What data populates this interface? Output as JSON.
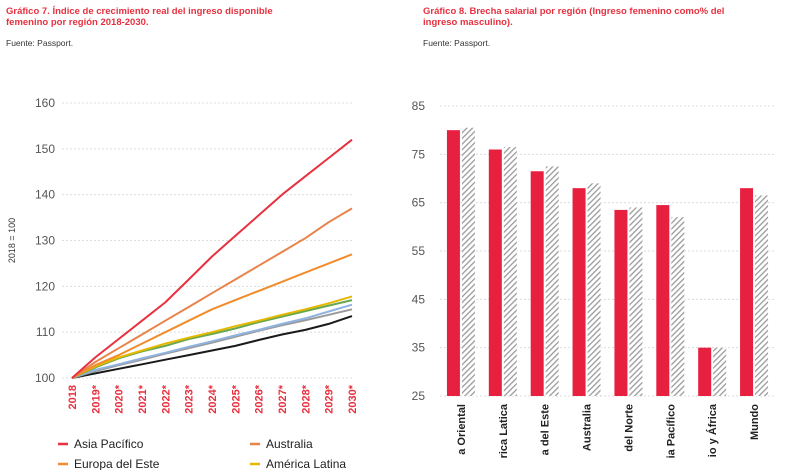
{
  "colors": {
    "asia_pacifico": "#e8303f",
    "australia": "#e8834a",
    "europa_este": "#f08c2a",
    "america_latina": "#e6b800",
    "green": "#6aa84f",
    "lightblue": "#8fb3e0",
    "grey": "#9a9a9a",
    "black": "#1a1a1a",
    "bar_red": "#e8203f",
    "bar_hatch": "#9a9a9a",
    "axis_text": "#555555",
    "grid": "#dcdcdc",
    "accent": "#e8303f"
  },
  "left_chart": {
    "title_line1": "Gráfico 7. Índice de crecimiento real del ingreso disponible",
    "title_line2": "femenino por región 2018-2030.",
    "source": "Fuente: Passport."
  },
  "right_chart": {
    "title_line1": "Gráfico 8. Brecha salarial por región (Ingreso femenino como% del",
    "title_line2": "ingreso masculino).",
    "source": "Fuente: Passport."
  },
  "chart_data": [
    {
      "type": "line",
      "title": "Gráfico 7. Índice de crecimiento real del ingreso disponible femenino por región 2018-2030.",
      "ylabel": "2018 = 100",
      "ylim": [
        100,
        160
      ],
      "yticks": [
        100,
        110,
        120,
        130,
        140,
        150,
        160
      ],
      "x": [
        "2018",
        "2019*",
        "2020*",
        "2021*",
        "2022*",
        "2023*",
        "2024*",
        "2025*",
        "2026*",
        "2027*",
        "2028*",
        "2029*",
        "2030*"
      ],
      "series": [
        {
          "name": "Asia Pacífico",
          "color_key": "asia_pacifico",
          "values": [
            100,
            104.5,
            108.5,
            112.5,
            116.5,
            121.5,
            126.5,
            131,
            135.5,
            140,
            144,
            148,
            152
          ]
        },
        {
          "name": "Australia",
          "color_key": "australia",
          "values": [
            100,
            103.5,
            106.5,
            109.5,
            112.5,
            115.5,
            118.5,
            121.5,
            124.5,
            127.5,
            130.5,
            134,
            137
          ]
        },
        {
          "name": "Europa del Este",
          "color_key": "europa_este",
          "values": [
            100,
            102.8,
            105,
            107.5,
            110,
            112.5,
            115,
            117,
            119,
            121,
            123,
            125,
            127
          ]
        },
        {
          "name": "América Latina",
          "color_key": "america_latina",
          "values": [
            100,
            102.5,
            104.5,
            106,
            107.5,
            108.8,
            110,
            111.3,
            112.5,
            113.8,
            115,
            116.3,
            117.8
          ]
        },
        {
          "name": "",
          "color_key": "green",
          "values": [
            100,
            102.3,
            104.3,
            105.8,
            107,
            108.5,
            109.6,
            110.8,
            112.2,
            113.4,
            114.6,
            115.8,
            117
          ]
        },
        {
          "name": "",
          "color_key": "lightblue",
          "values": [
            100,
            101.8,
            103,
            104.3,
            105.5,
            106.8,
            108,
            109.3,
            110.5,
            111.8,
            113,
            114.5,
            116
          ]
        },
        {
          "name": "",
          "color_key": "grey",
          "values": [
            100,
            101.5,
            102.8,
            104,
            105.3,
            106.5,
            107.7,
            109,
            110.3,
            111.5,
            112.6,
            113.8,
            115
          ]
        },
        {
          "name": "",
          "color_key": "black",
          "values": [
            100,
            101,
            102,
            103,
            104,
            105,
            106,
            107,
            108.3,
            109.5,
            110.5,
            111.8,
            113.5
          ]
        }
      ],
      "legend_visible": [
        "Asia Pacífico",
        "Australia",
        "Europa del Este",
        "América Latina"
      ]
    },
    {
      "type": "bar",
      "title": "Gráfico 8. Brecha salarial por región (Ingreso femenino como% del ingreso masculino).",
      "ylim": [
        25,
        85
      ],
      "yticks": [
        25,
        35,
        45,
        55,
        65,
        75,
        85
      ],
      "categories": [
        "a Oriental",
        "rica Latica",
        "a del Este",
        "Australia",
        "del Norte",
        "ia Pacífico",
        "io y África",
        "Mundo"
      ],
      "series": [
        {
          "name": "series_red",
          "color_key": "bar_red",
          "values": [
            80,
            76,
            71.5,
            68,
            63.5,
            64.5,
            35,
            68
          ]
        },
        {
          "name": "series_hatched",
          "color_key": "bar_hatch",
          "values": [
            80.5,
            76.5,
            72.5,
            69,
            64,
            62,
            35,
            66.5
          ]
        }
      ]
    }
  ]
}
